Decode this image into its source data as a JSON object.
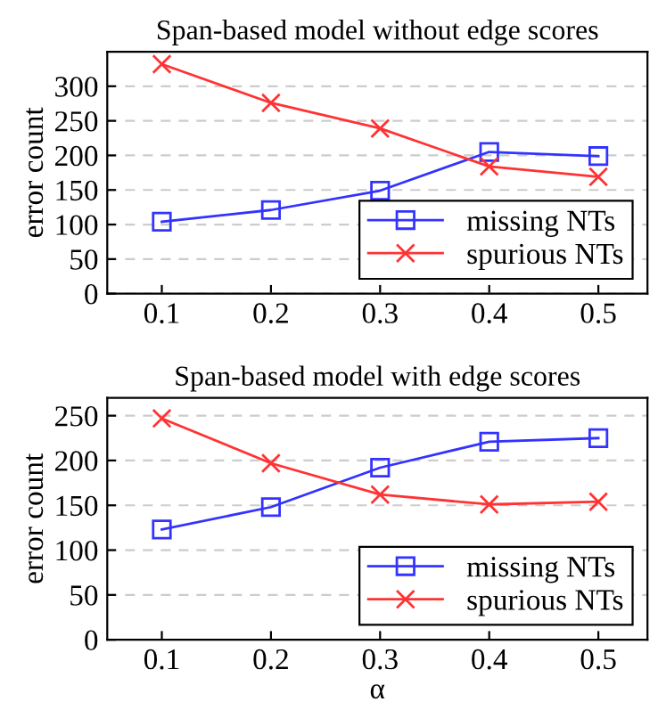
{
  "chart_data": [
    {
      "type": "line",
      "title": "Span-based model without edge scores",
      "ylabel": "error count",
      "x": [
        0.1,
        0.2,
        0.3,
        0.4,
        0.5
      ],
      "xlim": [
        0.05,
        0.545
      ],
      "xticks": [
        0.1,
        0.2,
        0.3,
        0.4,
        0.5
      ],
      "ylim": [
        0,
        350
      ],
      "yticks": [
        0,
        50,
        100,
        150,
        200,
        250,
        300
      ],
      "grid": "y",
      "legend": "bottom right",
      "series": [
        {
          "name": "missing NTs",
          "color": "#3333ff",
          "marker": "square",
          "values": [
            104,
            121,
            149,
            205,
            199
          ]
        },
        {
          "name": "spurious NTs",
          "color": "#ff3333",
          "marker": "cross",
          "values": [
            332,
            276,
            239,
            184,
            169
          ]
        }
      ]
    },
    {
      "type": "line",
      "title": "Span-based model with edge scores",
      "xlabel": "α",
      "ylabel": "error count",
      "x": [
        0.1,
        0.2,
        0.3,
        0.4,
        0.5
      ],
      "xlim": [
        0.05,
        0.545
      ],
      "xticks": [
        0.1,
        0.2,
        0.3,
        0.4,
        0.5
      ],
      "ylim": [
        0,
        270
      ],
      "yticks": [
        0,
        50,
        100,
        150,
        200,
        250
      ],
      "grid": "y",
      "legend": "bottom right",
      "series": [
        {
          "name": "missing NTs",
          "color": "#3333ff",
          "marker": "square",
          "values": [
            123,
            148,
            192,
            221,
            225
          ]
        },
        {
          "name": "spurious NTs",
          "color": "#ff3333",
          "marker": "cross",
          "values": [
            247,
            197,
            162,
            151,
            154
          ]
        }
      ]
    }
  ]
}
